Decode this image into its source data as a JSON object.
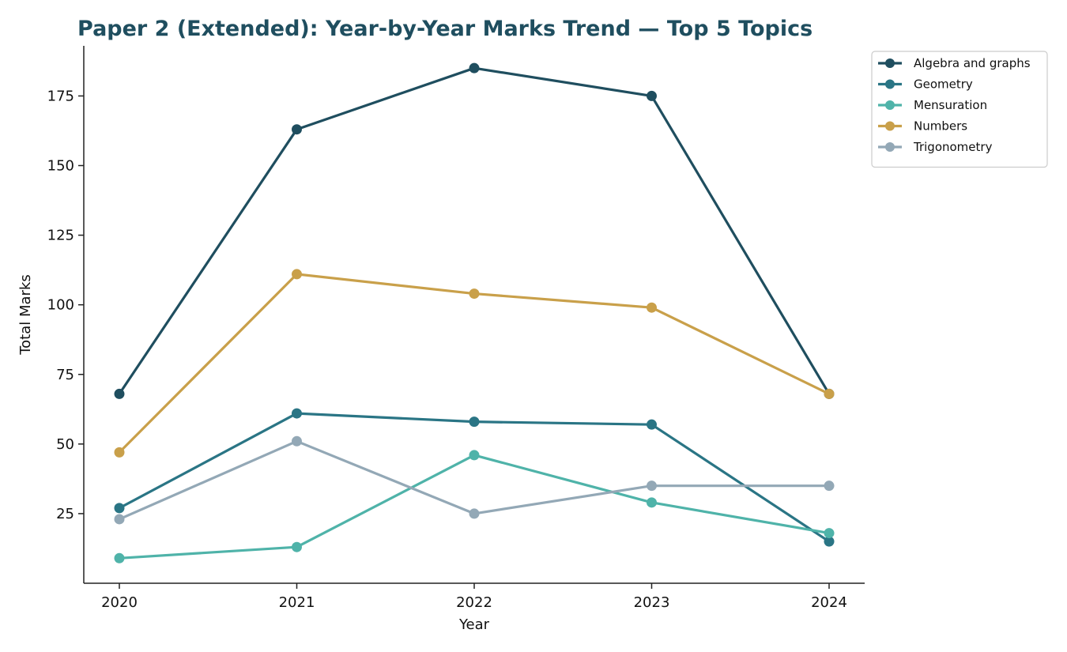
{
  "chart_data": {
    "type": "line",
    "title": "Paper 2 (Extended): Year-by-Year Marks Trend — Top 5 Topics",
    "xlabel": "Year",
    "ylabel": "Total Marks",
    "x": [
      2020,
      2021,
      2022,
      2023,
      2024
    ],
    "x_tick_labels": [
      "2020",
      "2021",
      "2022",
      "2023",
      "2024"
    ],
    "ylim": [
      0,
      193
    ],
    "y_ticks": [
      25,
      50,
      75,
      100,
      125,
      150,
      175
    ],
    "grid": false,
    "legend_position": "top-right, outside plot",
    "series": [
      {
        "name": "Algebra and graphs",
        "color": "#1f4e5f",
        "values": [
          68,
          163,
          185,
          175,
          68
        ]
      },
      {
        "name": "Geometry",
        "color": "#2a7585",
        "values": [
          27,
          61,
          58,
          57,
          15
        ]
      },
      {
        "name": "Mensuration",
        "color": "#4fb3a9",
        "values": [
          9,
          13,
          46,
          29,
          18
        ]
      },
      {
        "name": "Numbers",
        "color": "#c9a04a",
        "values": [
          47,
          111,
          104,
          99,
          68
        ]
      },
      {
        "name": "Trigonometry",
        "color": "#93a8b6",
        "values": [
          23,
          51,
          25,
          35,
          35
        ]
      }
    ]
  }
}
